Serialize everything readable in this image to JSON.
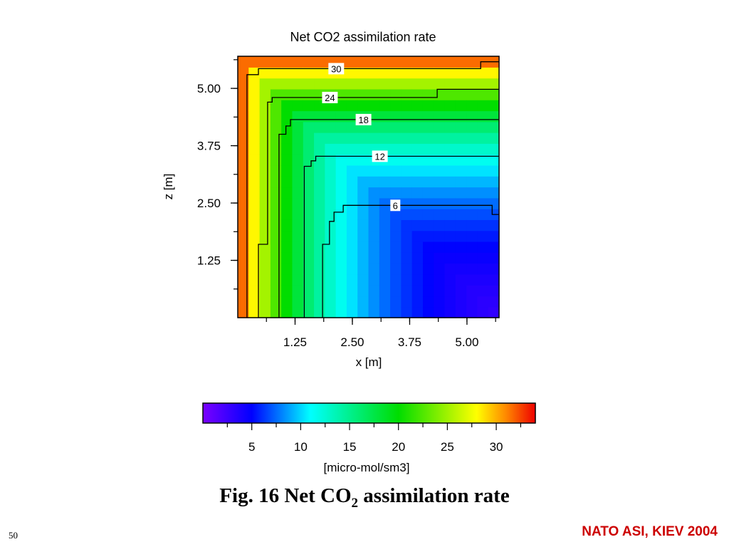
{
  "slide": {
    "caption_prefix": "Fig. 16  Net CO",
    "caption_sub": "2",
    "caption_suffix": " assimilation rate",
    "slide_number": "50",
    "footer": "NATO ASI, KIEV 2004",
    "footer_color": "#cc0000"
  },
  "chart_data": [
    {
      "type": "heatmap",
      "title": "Net CO2 assimilation rate",
      "xlabel": "x [m]",
      "ylabel": "z [m]",
      "xlim": [
        0,
        5.7
      ],
      "ylim": [
        0,
        5.7
      ],
      "x_ticks": [
        1.25,
        2.5,
        3.75,
        5.0
      ],
      "x_tick_labels": [
        "1.25",
        "2.50",
        "3.75",
        "5.00"
      ],
      "y_ticks": [
        1.25,
        2.5,
        3.75,
        5.0
      ],
      "y_tick_labels": [
        "1.25",
        "2.50",
        "3.75",
        "5.00"
      ],
      "field_model": {
        "corner_x": 0.0,
        "corner_z": 5.7,
        "value_min": 1.0,
        "value_max": 33.5,
        "decay_distance": 2.0
      },
      "contours": [
        {
          "level": "30",
          "path": [
            [
              0.2,
              0
            ],
            [
              0.2,
              5.3
            ],
            [
              0.45,
              5.3
            ],
            [
              0.45,
              5.43
            ],
            [
              5.3,
              5.43
            ],
            [
              5.3,
              5.58
            ],
            [
              5.7,
              5.58
            ]
          ]
        },
        {
          "level": "24",
          "path": [
            [
              0.45,
              0
            ],
            [
              0.45,
              1.6
            ],
            [
              0.65,
              1.6
            ],
            [
              0.65,
              4.7
            ],
            [
              0.75,
              4.7
            ],
            [
              0.75,
              4.8
            ],
            [
              4.35,
              4.8
            ],
            [
              4.35,
              4.98
            ],
            [
              5.7,
              4.98
            ]
          ]
        },
        {
          "level": "18",
          "path": [
            [
              0.9,
              0
            ],
            [
              0.9,
              4.0
            ],
            [
              1.05,
              4.0
            ],
            [
              1.05,
              4.18
            ],
            [
              1.15,
              4.18
            ],
            [
              1.15,
              4.32
            ],
            [
              5.7,
              4.32
            ]
          ]
        },
        {
          "level": "12",
          "path": [
            [
              1.45,
              0
            ],
            [
              1.45,
              3.3
            ],
            [
              1.6,
              3.3
            ],
            [
              1.6,
              3.42
            ],
            [
              1.7,
              3.42
            ],
            [
              1.7,
              3.52
            ],
            [
              5.7,
              3.52
            ]
          ]
        },
        {
          "level": "6",
          "path": [
            [
              1.85,
              0
            ],
            [
              1.85,
              1.6
            ],
            [
              2.0,
              1.6
            ],
            [
              2.0,
              2.1
            ],
            [
              2.1,
              2.1
            ],
            [
              2.1,
              2.3
            ],
            [
              2.3,
              2.3
            ],
            [
              2.3,
              2.45
            ],
            [
              5.55,
              2.45
            ],
            [
              5.55,
              2.25
            ],
            [
              5.7,
              2.25
            ]
          ]
        }
      ]
    },
    {
      "type": "colorbar",
      "xlabel": "[micro-mol/sm3]",
      "range": [
        0,
        34
      ],
      "ticks": [
        5,
        10,
        15,
        20,
        25,
        30
      ],
      "tick_labels": [
        "5",
        "10",
        "15",
        "20",
        "25",
        "30"
      ],
      "colormap_stops": [
        {
          "value": 0,
          "color": "#7a00ff"
        },
        {
          "value": 5,
          "color": "#0000ff"
        },
        {
          "value": 11,
          "color": "#00ffff"
        },
        {
          "value": 20,
          "color": "#00dd00"
        },
        {
          "value": 28,
          "color": "#ffff00"
        },
        {
          "value": 31,
          "color": "#ff8800"
        },
        {
          "value": 34,
          "color": "#ee0000"
        }
      ]
    }
  ]
}
